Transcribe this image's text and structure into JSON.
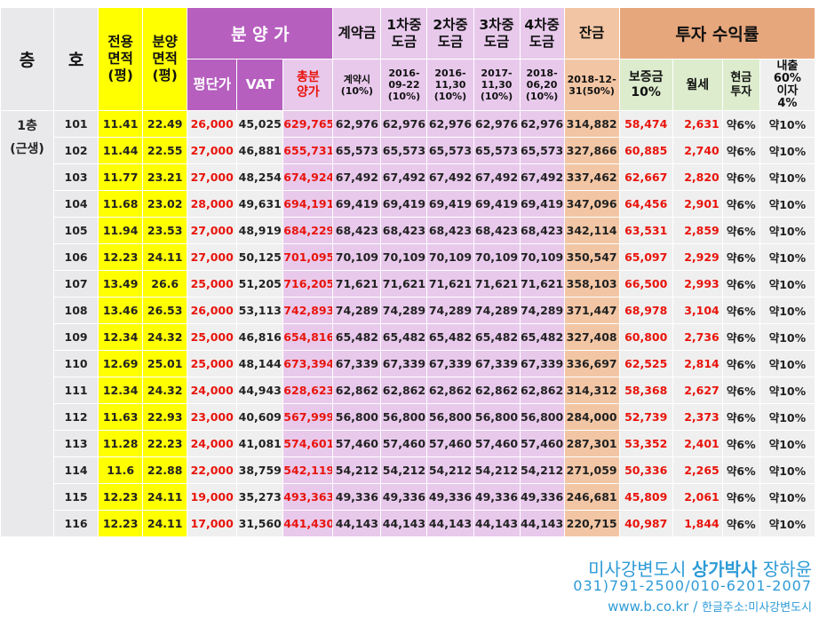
{
  "headers": {
    "floor": "층",
    "unit": "호",
    "exclusive_area": [
      "전용",
      "면적",
      "(평)"
    ],
    "sale_area": [
      "분양",
      "면적",
      "(평)"
    ],
    "sale_price_group": "분 양 가",
    "price_per_pyeong": "평단가",
    "vat": "VAT",
    "total_price": [
      "총분",
      "양가"
    ],
    "deposit": "계약금",
    "deposit_sub": [
      "계약시",
      "(10%)"
    ],
    "interim1": [
      "1차중",
      "도금"
    ],
    "interim1_sub": [
      "2016-",
      "09-22",
      "(10%)"
    ],
    "interim2": [
      "2차중",
      "도금"
    ],
    "interim2_sub": [
      "2016-",
      "11,30",
      "(10%)"
    ],
    "interim3": [
      "3차중",
      "도금"
    ],
    "interim3_sub": [
      "2017-",
      "11,30",
      "(10%)"
    ],
    "interim4": [
      "4차중",
      "도금"
    ],
    "interim4_sub": [
      "2018-",
      "06,20",
      "(10%)"
    ],
    "balance": "잔금",
    "balance_sub": [
      "2018-12-",
      "31(50%)"
    ],
    "investment_group": "투자 수익률",
    "security_deposit": [
      "보증금",
      "10%"
    ],
    "monthly_rent": "월세",
    "cash_investment": [
      "현금",
      "투자"
    ],
    "loan": [
      "내출",
      "60%",
      "이자",
      "4%"
    ]
  },
  "floor_label": [
    "1층",
    "(근생)"
  ],
  "rows": [
    {
      "unit": "101",
      "exclusive": "11.41",
      "sale": "22.49",
      "ppp": "26,000",
      "vat": "45,025",
      "total": "629,765",
      "deposit": "62,976",
      "i1": "62,976",
      "i2": "62,976",
      "i3": "62,976",
      "i4": "62,976",
      "balance": "314,882",
      "security": "58,474",
      "rent": "2,631",
      "cash": "약6%",
      "loan": "약10%"
    },
    {
      "unit": "102",
      "exclusive": "11.44",
      "sale": "22.55",
      "ppp": "27,000",
      "vat": "46,881",
      "total": "655,731",
      "deposit": "65,573",
      "i1": "65,573",
      "i2": "65,573",
      "i3": "65,573",
      "i4": "65,573",
      "balance": "327,866",
      "security": "60,885",
      "rent": "2,740",
      "cash": "약6%",
      "loan": "약10%"
    },
    {
      "unit": "103",
      "exclusive": "11.77",
      "sale": "23.21",
      "ppp": "27,000",
      "vat": "48,254",
      "total": "674,924",
      "deposit": "67,492",
      "i1": "67,492",
      "i2": "67,492",
      "i3": "67,492",
      "i4": "67,492",
      "balance": "337,462",
      "security": "62,667",
      "rent": "2,820",
      "cash": "약6%",
      "loan": "약10%"
    },
    {
      "unit": "104",
      "exclusive": "11.68",
      "sale": "23.02",
      "ppp": "28,000",
      "vat": "49,631",
      "total": "694,191",
      "deposit": "69,419",
      "i1": "69,419",
      "i2": "69,419",
      "i3": "69,419",
      "i4": "69,419",
      "balance": "347,096",
      "security": "64,456",
      "rent": "2,901",
      "cash": "약6%",
      "loan": "약10%"
    },
    {
      "unit": "105",
      "exclusive": "11.94",
      "sale": "23.53",
      "ppp": "27,000",
      "vat": "48,919",
      "total": "684,229",
      "deposit": "68,423",
      "i1": "68,423",
      "i2": "68,423",
      "i3": "68,423",
      "i4": "68,423",
      "balance": "342,114",
      "security": "63,531",
      "rent": "2,859",
      "cash": "약6%",
      "loan": "약10%"
    },
    {
      "unit": "106",
      "exclusive": "12.23",
      "sale": "24.11",
      "ppp": "27,000",
      "vat": "50,125",
      "total": "701,095",
      "deposit": "70,109",
      "i1": "70,109",
      "i2": "70,109",
      "i3": "70,109",
      "i4": "70,109",
      "balance": "350,547",
      "security": "65,097",
      "rent": "2,929",
      "cash": "약6%",
      "loan": "약10%"
    },
    {
      "unit": "107",
      "exclusive": "13.49",
      "sale": "26.6",
      "ppp": "25,000",
      "vat": "51,205",
      "total": "716,205",
      "deposit": "71,621",
      "i1": "71,621",
      "i2": "71,621",
      "i3": "71,621",
      "i4": "71,621",
      "balance": "358,103",
      "security": "66,500",
      "rent": "2,993",
      "cash": "약6%",
      "loan": "약10%"
    },
    {
      "unit": "108",
      "exclusive": "13.46",
      "sale": "26.53",
      "ppp": "26,000",
      "vat": "53,113",
      "total": "742,893",
      "deposit": "74,289",
      "i1": "74,289",
      "i2": "74,289",
      "i3": "74,289",
      "i4": "74,289",
      "balance": "371,447",
      "security": "68,978",
      "rent": "3,104",
      "cash": "약6%",
      "loan": "약10%"
    },
    {
      "unit": "109",
      "exclusive": "12.34",
      "sale": "24.32",
      "ppp": "25,000",
      "vat": "46,816",
      "total": "654,816",
      "deposit": "65,482",
      "i1": "65,482",
      "i2": "65,482",
      "i3": "65,482",
      "i4": "65,482",
      "balance": "327,408",
      "security": "60,800",
      "rent": "2,736",
      "cash": "약6%",
      "loan": "약10%"
    },
    {
      "unit": "110",
      "exclusive": "12.69",
      "sale": "25.01",
      "ppp": "25,000",
      "vat": "48,144",
      "total": "673,394",
      "deposit": "67,339",
      "i1": "67,339",
      "i2": "67,339",
      "i3": "67,339",
      "i4": "67,339",
      "balance": "336,697",
      "security": "62,525",
      "rent": "2,814",
      "cash": "약6%",
      "loan": "약10%"
    },
    {
      "unit": "111",
      "exclusive": "12.34",
      "sale": "24.32",
      "ppp": "24,000",
      "vat": "44,943",
      "total": "628,623",
      "deposit": "62,862",
      "i1": "62,862",
      "i2": "62,862",
      "i3": "62,862",
      "i4": "62,862",
      "balance": "314,312",
      "security": "58,368",
      "rent": "2,627",
      "cash": "약6%",
      "loan": "약10%"
    },
    {
      "unit": "112",
      "exclusive": "11.63",
      "sale": "22.93",
      "ppp": "23,000",
      "vat": "40,609",
      "total": "567,999",
      "deposit": "56,800",
      "i1": "56,800",
      "i2": "56,800",
      "i3": "56,800",
      "i4": "56,800",
      "balance": "284,000",
      "security": "52,739",
      "rent": "2,373",
      "cash": "약6%",
      "loan": "약10%"
    },
    {
      "unit": "113",
      "exclusive": "11.28",
      "sale": "22.23",
      "ppp": "24,000",
      "vat": "41,081",
      "total": "574,601",
      "deposit": "57,460",
      "i1": "57,460",
      "i2": "57,460",
      "i3": "57,460",
      "i4": "57,460",
      "balance": "287,301",
      "security": "53,352",
      "rent": "2,401",
      "cash": "약6%",
      "loan": "약10%"
    },
    {
      "unit": "114",
      "exclusive": "11.6",
      "sale": "22.88",
      "ppp": "22,000",
      "vat": "38,759",
      "total": "542,119",
      "deposit": "54,212",
      "i1": "54,212",
      "i2": "54,212",
      "i3": "54,212",
      "i4": "54,212",
      "balance": "271,059",
      "security": "50,336",
      "rent": "2,265",
      "cash": "약6%",
      "loan": "약10%"
    },
    {
      "unit": "115",
      "exclusive": "12.23",
      "sale": "24.11",
      "ppp": "19,000",
      "vat": "35,273",
      "total": "493,363",
      "deposit": "49,336",
      "i1": "49,336",
      "i2": "49,336",
      "i3": "49,336",
      "i4": "49,336",
      "balance": "246,681",
      "security": "45,809",
      "rent": "2,061",
      "cash": "약6%",
      "loan": "약10%"
    },
    {
      "unit": "116",
      "exclusive": "12.23",
      "sale": "24.11",
      "ppp": "17,000",
      "vat": "31,560",
      "total": "441,430",
      "deposit": "44,143",
      "i1": "44,143",
      "i2": "44,143",
      "i3": "44,143",
      "i4": "44,143",
      "balance": "220,715",
      "security": "40,987",
      "rent": "1,844",
      "cash": "약6%",
      "loan": "약10%"
    }
  ],
  "footer": {
    "line1_a": "미사강변도시",
    "line1_b": "상가박사",
    "line1_c": "장하윤",
    "phone": "031)791-2500/010-6201-2007",
    "url": "www.b.co.kr",
    "sep": " / ",
    "korean_address": "한글주소:미사강변도시"
  }
}
